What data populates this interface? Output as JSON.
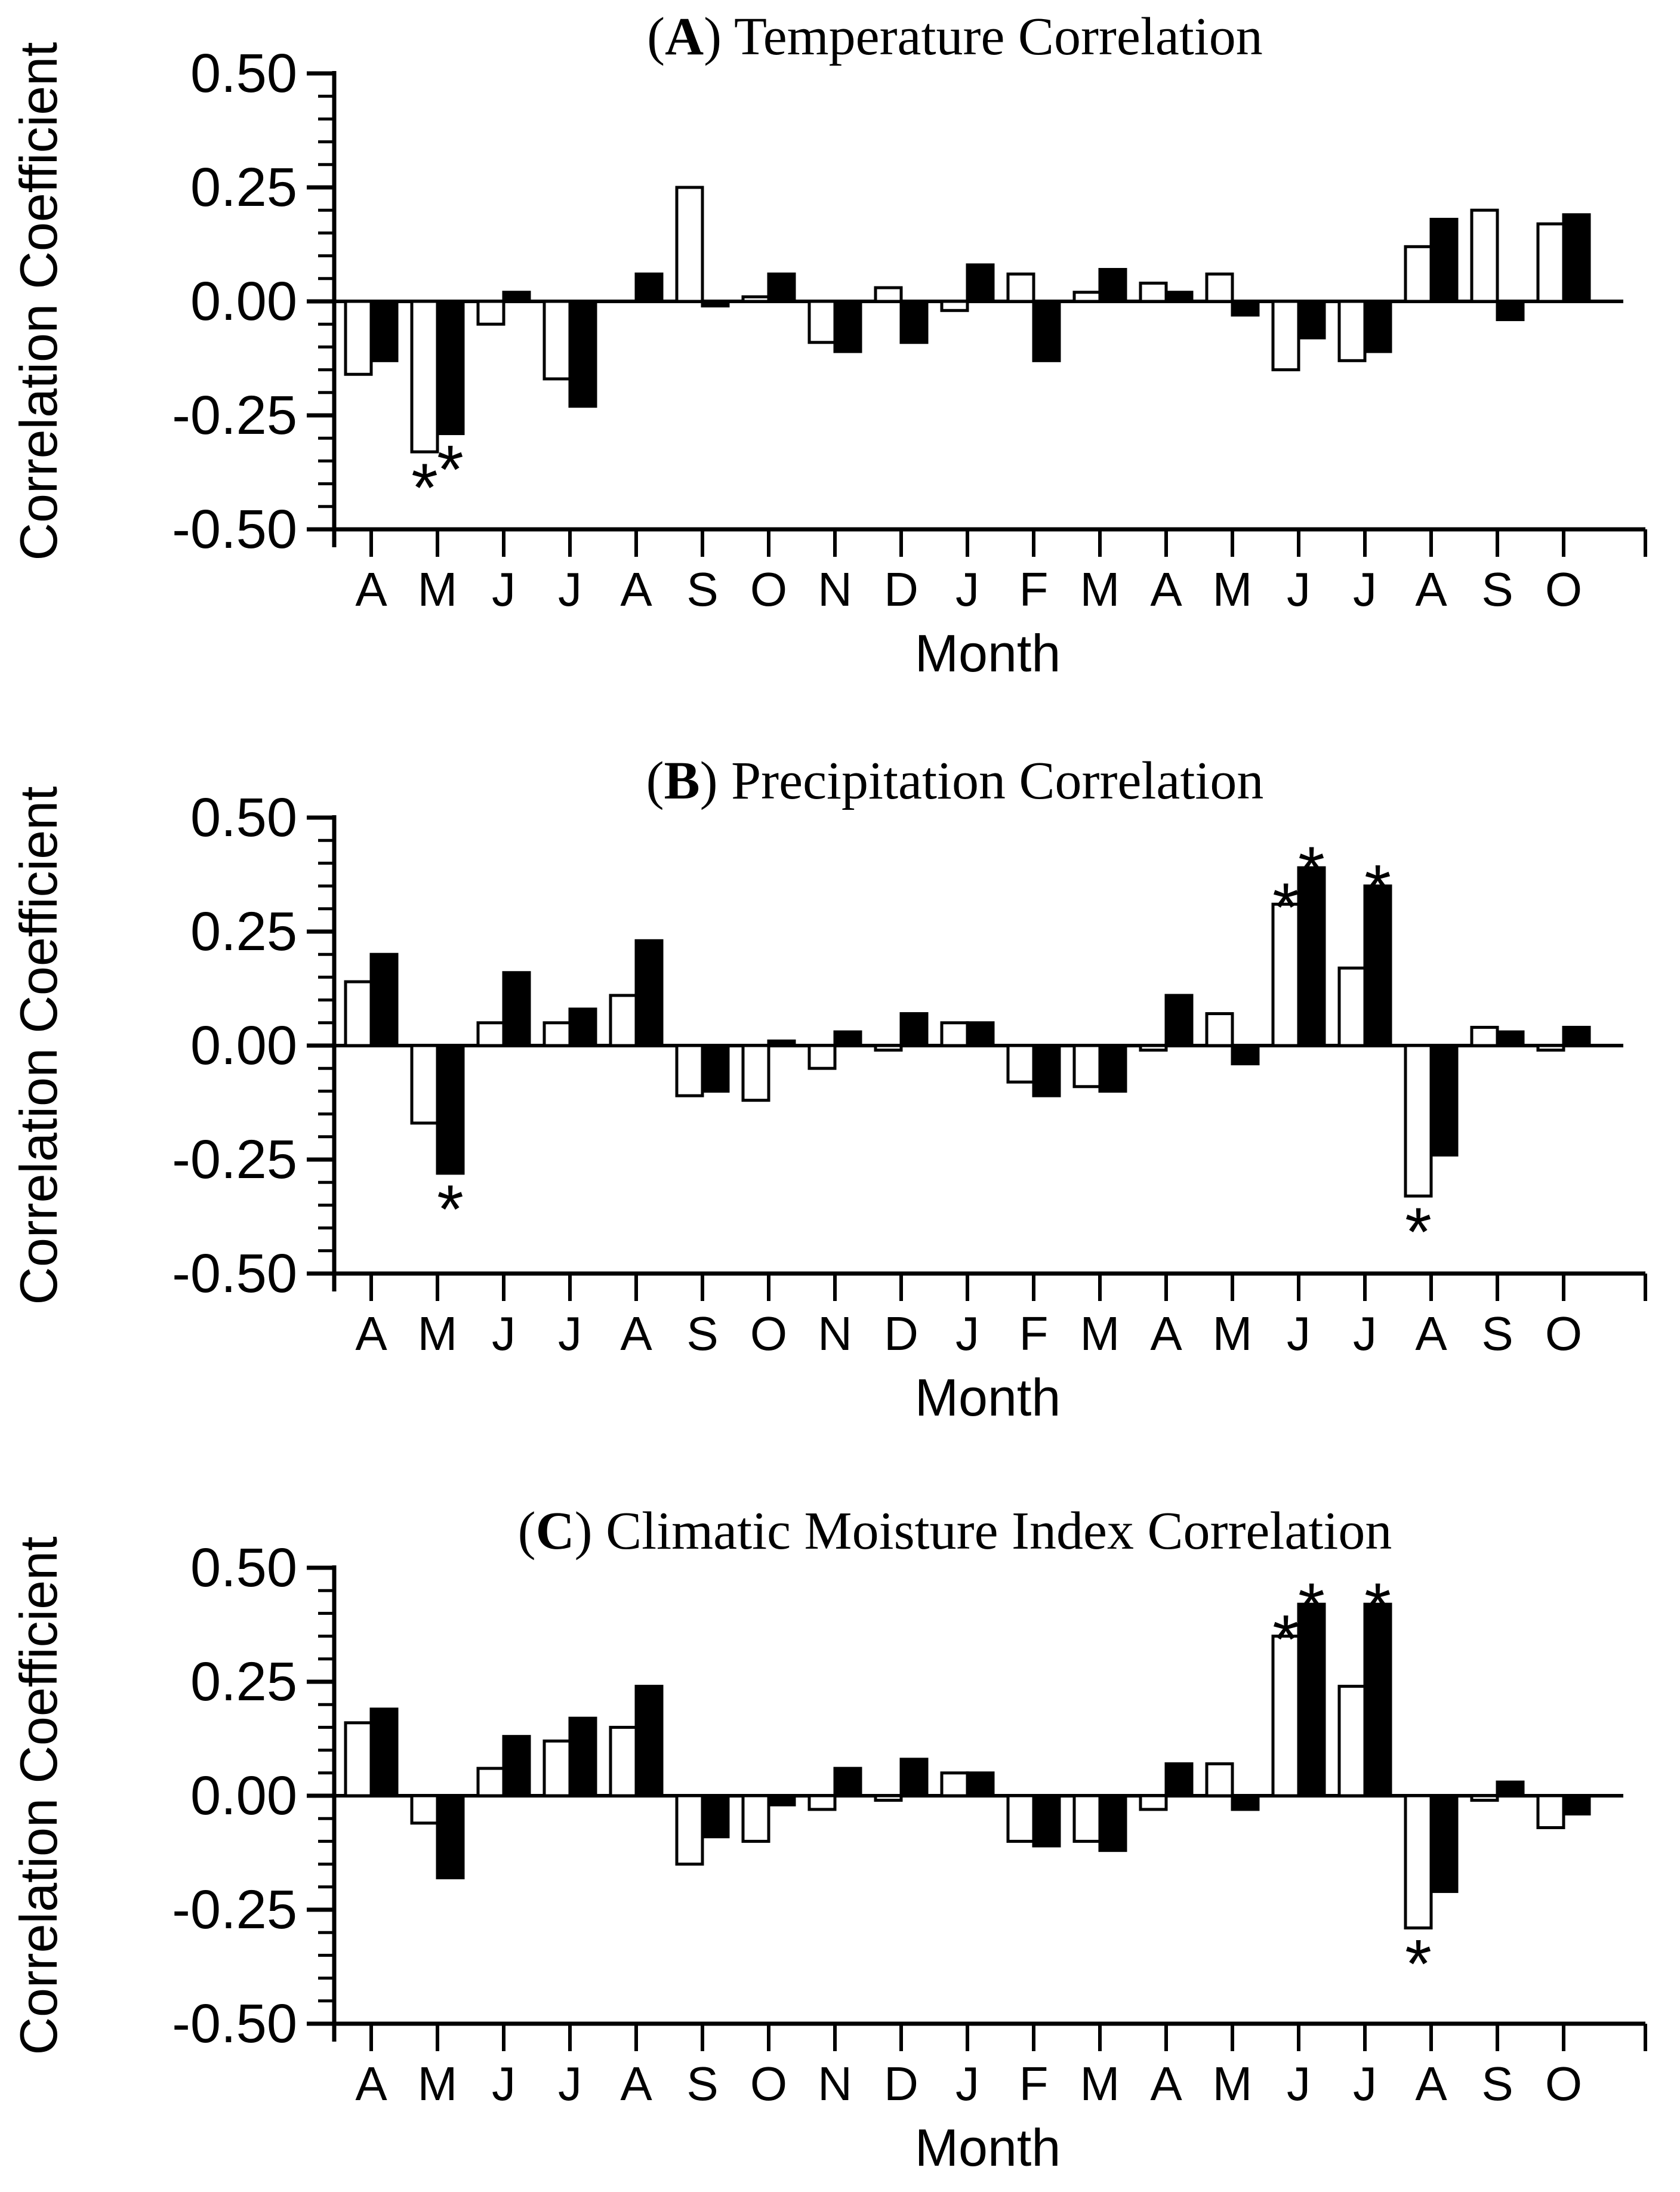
{
  "figure": {
    "background": "#ffffff",
    "axis_color": "#000000",
    "open_bar_fill": "#ffffff",
    "filled_bar_fill": "#000000",
    "star_symbol": "*"
  },
  "y_axis": {
    "label": "Correlation Coefficient",
    "tick_labels": [
      "0.50",
      "0.25",
      "0.00",
      "-0.25",
      "-0.50"
    ],
    "tick_values": [
      0.5,
      0.25,
      0.0,
      -0.25,
      -0.5
    ],
    "minor_tick_step": 0.05,
    "range": [
      -0.5,
      0.5
    ]
  },
  "x_axis": {
    "label": "Month",
    "categories": [
      "A",
      "M",
      "J",
      "J",
      "A",
      "S",
      "O",
      "N",
      "D",
      "J",
      "F",
      "M",
      "A",
      "M",
      "J",
      "J",
      "A",
      "S",
      "O"
    ]
  },
  "chart_data": [
    {
      "type": "bar",
      "panel": "A",
      "title_letter": "A",
      "title": "Temperature Correlation",
      "ylabel": "Correlation Coefficient",
      "xlabel": "Month",
      "ylim": [
        -0.5,
        0.5
      ],
      "categories": [
        "A",
        "M",
        "J",
        "J",
        "A",
        "S",
        "O",
        "N",
        "D",
        "J",
        "F",
        "M",
        "A",
        "M",
        "J",
        "J",
        "A",
        "S",
        "O"
      ],
      "series": [
        {
          "name": "open",
          "fill": "#ffffff",
          "values": [
            -0.16,
            -0.33,
            -0.05,
            -0.17,
            0.0,
            0.25,
            0.01,
            -0.09,
            0.03,
            -0.02,
            0.06,
            0.02,
            0.04,
            0.06,
            -0.15,
            -0.13,
            0.12,
            0.2,
            0.17
          ],
          "significant_indices": [
            1
          ]
        },
        {
          "name": "filled",
          "fill": "#000000",
          "values": [
            -0.13,
            -0.29,
            0.02,
            -0.23,
            0.06,
            -0.01,
            0.06,
            -0.11,
            -0.09,
            0.08,
            -0.13,
            0.07,
            0.02,
            -0.03,
            -0.08,
            -0.11,
            0.18,
            -0.04,
            0.19
          ],
          "significant_indices": [
            1
          ]
        }
      ]
    },
    {
      "type": "bar",
      "panel": "B",
      "title_letter": "B",
      "title": "Precipitation Correlation",
      "ylabel": "Correlation Coefficient",
      "xlabel": "Month",
      "ylim": [
        -0.5,
        0.5
      ],
      "categories": [
        "A",
        "M",
        "J",
        "J",
        "A",
        "S",
        "O",
        "N",
        "D",
        "J",
        "F",
        "M",
        "A",
        "M",
        "J",
        "J",
        "A",
        "S",
        "O"
      ],
      "series": [
        {
          "name": "open",
          "fill": "#ffffff",
          "values": [
            0.14,
            -0.17,
            0.05,
            0.05,
            0.11,
            -0.11,
            -0.12,
            -0.05,
            -0.01,
            0.05,
            -0.08,
            -0.09,
            -0.01,
            0.07,
            0.31,
            0.17,
            -0.33,
            0.04,
            -0.01
          ],
          "significant_indices": [
            14,
            16
          ]
        },
        {
          "name": "filled",
          "fill": "#000000",
          "values": [
            0.2,
            -0.28,
            0.16,
            0.08,
            0.23,
            -0.1,
            0.01,
            0.03,
            0.07,
            0.05,
            -0.11,
            -0.1,
            0.11,
            -0.04,
            0.39,
            0.35,
            -0.24,
            0.03,
            0.04
          ],
          "significant_indices": [
            1,
            14,
            15
          ]
        }
      ]
    },
    {
      "type": "bar",
      "panel": "C",
      "title_letter": "C",
      "title": "Climatic Moisture Index Correlation",
      "ylabel": "Correlation Coefficient",
      "xlabel": "Month",
      "ylim": [
        -0.5,
        0.5
      ],
      "categories": [
        "A",
        "M",
        "J",
        "J",
        "A",
        "S",
        "O",
        "N",
        "D",
        "J",
        "F",
        "M",
        "A",
        "M",
        "J",
        "J",
        "A",
        "S",
        "O"
      ],
      "series": [
        {
          "name": "open",
          "fill": "#ffffff",
          "values": [
            0.16,
            -0.06,
            0.06,
            0.12,
            0.15,
            -0.15,
            -0.1,
            -0.03,
            -0.01,
            0.05,
            -0.1,
            -0.1,
            -0.03,
            0.07,
            0.35,
            0.24,
            -0.29,
            -0.01,
            -0.07
          ],
          "significant_indices": [
            14,
            16
          ]
        },
        {
          "name": "filled",
          "fill": "#000000",
          "values": [
            0.19,
            -0.18,
            0.13,
            0.17,
            0.24,
            -0.09,
            -0.02,
            0.06,
            0.08,
            0.05,
            -0.11,
            -0.12,
            0.07,
            -0.03,
            0.42,
            0.42,
            -0.21,
            0.03,
            -0.04
          ],
          "significant_indices": [
            14,
            15
          ]
        }
      ]
    }
  ]
}
